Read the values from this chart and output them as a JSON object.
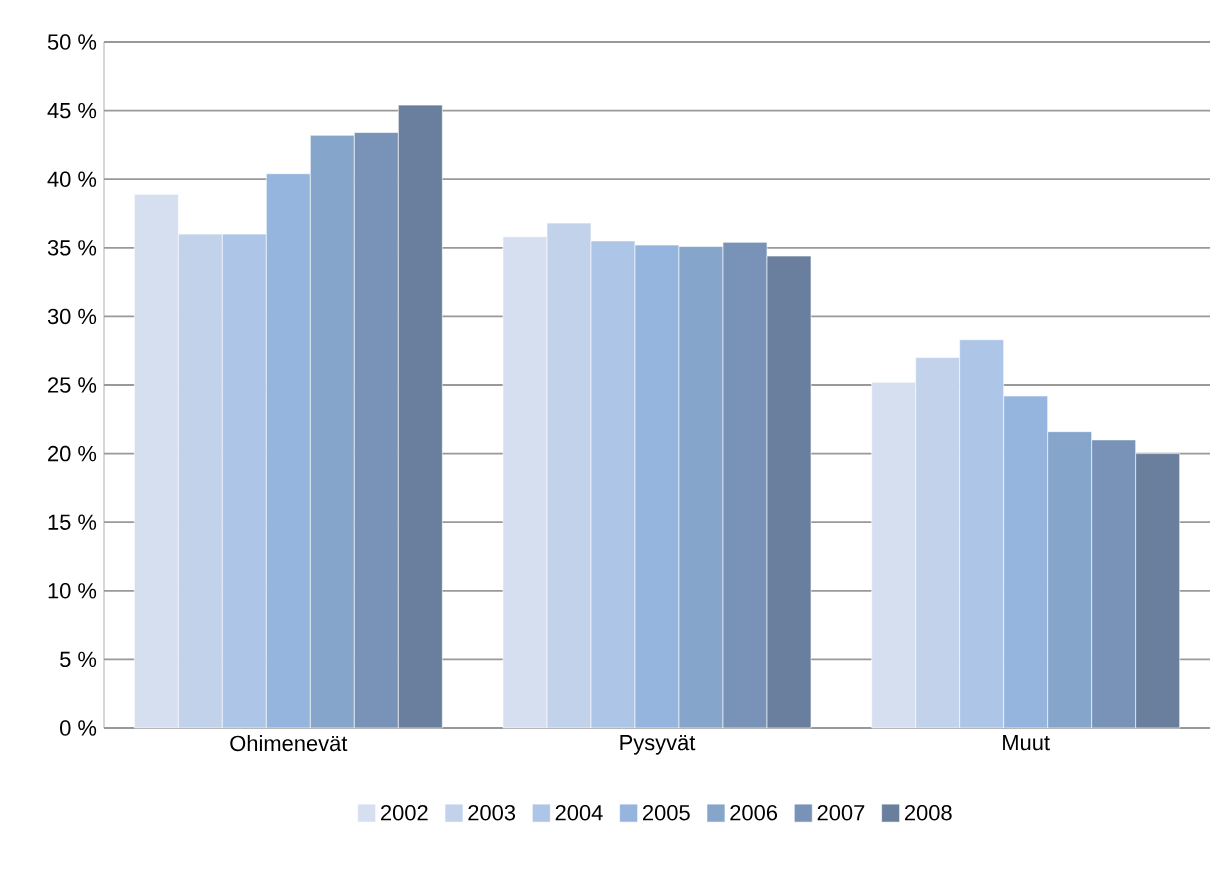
{
  "chart_data": {
    "type": "bar",
    "categories": [
      "Ohimenevät",
      "Pysyvät",
      "Muut"
    ],
    "series": [
      {
        "name": "2002",
        "color": "#d5dff0",
        "values": [
          38.9,
          35.8,
          25.2
        ]
      },
      {
        "name": "2003",
        "color": "#c2d2ea",
        "values": [
          36.0,
          36.8,
          27.0
        ]
      },
      {
        "name": "2004",
        "color": "#adc5e6",
        "values": [
          36.0,
          35.5,
          28.3
        ]
      },
      {
        "name": "2005",
        "color": "#95b5de",
        "values": [
          40.4,
          35.2,
          24.2
        ]
      },
      {
        "name": "2006",
        "color": "#86a5cb",
        "values": [
          43.2,
          35.1,
          21.6
        ]
      },
      {
        "name": "2007",
        "color": "#7893b7",
        "values": [
          43.4,
          35.4,
          21.0
        ]
      },
      {
        "name": "2008",
        "color": "#6a7f9e",
        "values": [
          45.4,
          34.4,
          20.0
        ]
      }
    ],
    "ylim": [
      0,
      50
    ],
    "yticks": [
      {
        "value": 0,
        "label": "0 %"
      },
      {
        "value": 5,
        "label": "5 %"
      },
      {
        "value": 10,
        "label": "10 %"
      },
      {
        "value": 15,
        "label": "15 %"
      },
      {
        "value": 20,
        "label": "20 %"
      },
      {
        "value": 25,
        "label": "25 %"
      },
      {
        "value": 30,
        "label": "30 %"
      },
      {
        "value": 35,
        "label": "35 %"
      },
      {
        "value": 40,
        "label": "40 %"
      },
      {
        "value": 45,
        "label": "45 %"
      },
      {
        "value": 50,
        "label": "50 %"
      }
    ],
    "grid": "y",
    "legend": "bottom"
  }
}
